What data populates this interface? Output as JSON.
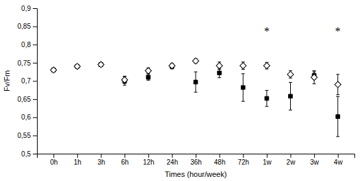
{
  "chart_data": {
    "type": "scatter",
    "xlabel": "Times (hour/week)",
    "ylabel": "Fv/Fm",
    "categories": [
      "0h",
      "1h",
      "3h",
      "6h",
      "12h",
      "24h",
      "36h",
      "48h",
      "72h",
      "1w",
      "2w",
      "3w",
      "4w"
    ],
    "series": [
      {
        "values": [
          0.73,
          0.74,
          0.745,
          0.7,
          0.71,
          0.74,
          0.697,
          0.722,
          0.682,
          0.652,
          0.658,
          0.715,
          0.602
        ],
        "errors": [
          0.004,
          0.004,
          0.005,
          0.012,
          0.008,
          0.007,
          0.028,
          0.013,
          0.038,
          0.022,
          0.038,
          0.01,
          0.055
        ],
        "marker": "square",
        "color": "#000000"
      },
      {
        "values": [
          0.73,
          0.74,
          0.745,
          0.703,
          0.728,
          0.742,
          0.755,
          0.742,
          0.742,
          0.742,
          0.718,
          0.71,
          0.69
        ],
        "errors": [
          0.004,
          0.004,
          0.005,
          0.01,
          0.008,
          0.006,
          0.006,
          0.01,
          0.01,
          0.009,
          0.01,
          0.018,
          0.028
        ],
        "marker": "diamond",
        "color": "#ffffff"
      }
    ],
    "annotations": [
      {
        "text": "*",
        "x": "1w",
        "y": 0.838
      },
      {
        "text": "*",
        "x": "4w",
        "y": 0.838
      }
    ],
    "ylim": [
      0.5,
      0.9
    ],
    "yticks": [
      {
        "value": 0.5,
        "label": "0,5"
      },
      {
        "value": 0.55,
        "label": "0,55"
      },
      {
        "value": 0.6,
        "label": "0,6"
      },
      {
        "value": 0.65,
        "label": "0,65"
      },
      {
        "value": 0.7,
        "label": "0,7"
      },
      {
        "value": 0.75,
        "label": "0,75"
      },
      {
        "value": 0.8,
        "label": "0,8"
      },
      {
        "value": 0.85,
        "label": "0,85"
      },
      {
        "value": 0.9,
        "label": "0,9"
      }
    ],
    "grid": false
  }
}
